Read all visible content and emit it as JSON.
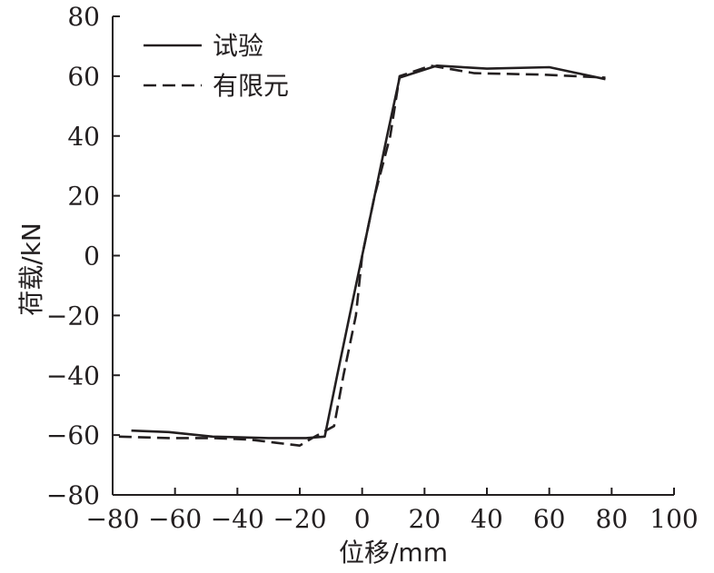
{
  "chart_data": {
    "type": "line",
    "xlabel": "位移/mm",
    "ylabel": "荷载/kN",
    "xlim": [
      -80,
      100
    ],
    "ylim": [
      -80,
      80
    ],
    "xticks": [
      -80,
      -60,
      -40,
      -20,
      0,
      20,
      40,
      60,
      80,
      100
    ],
    "yticks": [
      -80,
      -60,
      -40,
      -20,
      0,
      20,
      40,
      60,
      80
    ],
    "grid": false,
    "legend": "top-left",
    "series": [
      {
        "name": "试验",
        "style": "solid",
        "color": "#231f20",
        "x": [
          -74,
          -62,
          -48,
          -30,
          -18,
          -12,
          -8,
          -4,
          0,
          4,
          8,
          12,
          24,
          40,
          60,
          78
        ],
        "y": [
          -58.5,
          -59,
          -60.5,
          -61,
          -61,
          -60.5,
          -40,
          -20,
          0,
          20,
          40,
          59.5,
          63.5,
          62.5,
          63,
          59
        ]
      },
      {
        "name": "有限元",
        "style": "dashed",
        "color": "#231f20",
        "x": [
          -78,
          -62,
          -48,
          -36,
          -28,
          -20,
          -16,
          -9,
          -6,
          -2,
          0,
          4,
          9,
          12,
          22,
          36,
          58,
          78
        ],
        "y": [
          -60.5,
          -61,
          -61,
          -61.5,
          -62.5,
          -63.5,
          -61,
          -57,
          -40,
          -20,
          0,
          20,
          40,
          60,
          63.5,
          61,
          60.5,
          59.5
        ]
      }
    ]
  }
}
